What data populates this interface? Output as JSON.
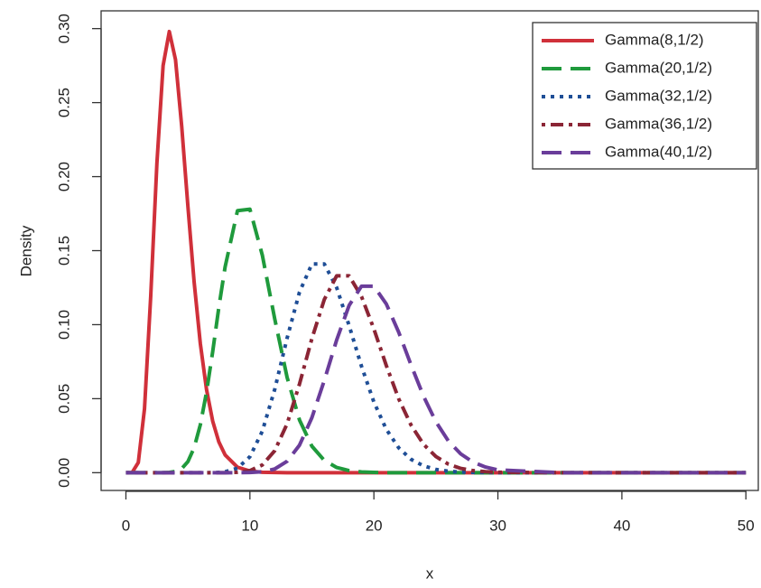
{
  "chart_data": {
    "type": "line",
    "xlabel": "x",
    "ylabel": "Density",
    "x": [
      0,
      0.5,
      1,
      1.5,
      2,
      2.5,
      3,
      3.5,
      4,
      4.5,
      5,
      5.5,
      6,
      6.5,
      7,
      7.5,
      8,
      9,
      10,
      11,
      12,
      13,
      14,
      15,
      16,
      17,
      18,
      19,
      20,
      21,
      22,
      23,
      24,
      25,
      26,
      27,
      28,
      29,
      30,
      35,
      40,
      45,
      50
    ],
    "series": [
      {
        "name": "Gamma(8,1/2)",
        "color": "#d0303a",
        "dash": "solid",
        "values": [
          0,
          0.0001,
          0.0069,
          0.0432,
          0.119,
          0.209,
          0.275,
          0.298,
          0.279,
          0.234,
          0.18,
          0.129,
          0.0873,
          0.0563,
          0.0348,
          0.0207,
          0.012,
          0.0037,
          0.0011,
          0.0003,
          0.0001,
          0,
          0,
          0,
          0,
          0,
          0,
          0,
          0,
          0,
          0,
          0,
          0,
          0,
          0,
          0,
          0,
          0,
          0,
          0,
          0,
          0,
          0
        ]
      },
      {
        "name": "Gamma(20,1/2)",
        "color": "#1f9a3c",
        "dash": "longdash",
        "values": [
          0,
          0,
          0,
          0,
          0,
          0,
          0,
          0.0002,
          0.0008,
          0.0027,
          0.0075,
          0.0168,
          0.0323,
          0.0543,
          0.0818,
          0.112,
          0.139,
          0.177,
          0.178,
          0.147,
          0.104,
          0.0644,
          0.0356,
          0.0179,
          0.0083,
          0.0035,
          0.0014,
          0.0005,
          0.0002,
          0,
          0,
          0,
          0,
          0,
          0,
          0,
          0,
          0,
          0,
          0,
          0,
          0,
          0
        ]
      },
      {
        "name": "Gamma(32,1/2)",
        "color": "#1f4e96",
        "dash": "dotted",
        "values": [
          0,
          0,
          0,
          0,
          0,
          0,
          0,
          0,
          0,
          0,
          0,
          0,
          0,
          0,
          0.0001,
          0.0002,
          0.0006,
          0.003,
          0.0108,
          0.028,
          0.0562,
          0.0909,
          0.122,
          0.141,
          0.141,
          0.125,
          0.0994,
          0.0719,
          0.0477,
          0.0293,
          0.0168,
          0.009,
          0.0046,
          0.0022,
          0.001,
          0.0004,
          0.0002,
          0.0001,
          0,
          0,
          0,
          0,
          0
        ]
      },
      {
        "name": "Gamma(36,1/2)",
        "color": "#8b2535",
        "dash": "dotdash",
        "values": [
          0,
          0,
          0,
          0,
          0,
          0,
          0,
          0,
          0,
          0,
          0,
          0,
          0,
          0,
          0,
          0,
          0,
          0.0003,
          0.0014,
          0.0052,
          0.0148,
          0.033,
          0.0599,
          0.0906,
          0.117,
          0.133,
          0.133,
          0.119,
          0.0971,
          0.0724,
          0.0499,
          0.0321,
          0.0192,
          0.0109,
          0.0058,
          0.0029,
          0.0014,
          0.0007,
          0.0003,
          0,
          0,
          0,
          0
        ]
      },
      {
        "name": "Gamma(40,1/2)",
        "color": "#6a3d9a",
        "dash": "longdash",
        "values": [
          0,
          0,
          0,
          0,
          0,
          0,
          0,
          0,
          0,
          0,
          0,
          0,
          0,
          0,
          0,
          0,
          0,
          0,
          0.0001,
          0.0006,
          0.0025,
          0.0077,
          0.0186,
          0.0372,
          0.0623,
          0.0897,
          0.113,
          0.126,
          0.126,
          0.114,
          0.0949,
          0.0727,
          0.0517,
          0.0344,
          0.0215,
          0.0127,
          0.0071,
          0.0038,
          0.0019,
          0,
          0,
          0,
          0
        ]
      }
    ],
    "xlim": [
      -2,
      51
    ],
    "ylim": [
      -0.012,
      0.312
    ],
    "xticks": [
      0,
      10,
      20,
      30,
      40,
      50
    ],
    "yticks": [
      {
        "value": 0,
        "label": "0.00"
      },
      {
        "value": 0.05,
        "label": "0.05"
      },
      {
        "value": 0.1,
        "label": "0.10"
      },
      {
        "value": 0.15,
        "label": "0.15"
      },
      {
        "value": 0.2,
        "label": "0.20"
      },
      {
        "value": 0.25,
        "label": "0.25"
      },
      {
        "value": 0.3,
        "label": "0.30"
      }
    ],
    "legend": "topright",
    "grid": false
  }
}
